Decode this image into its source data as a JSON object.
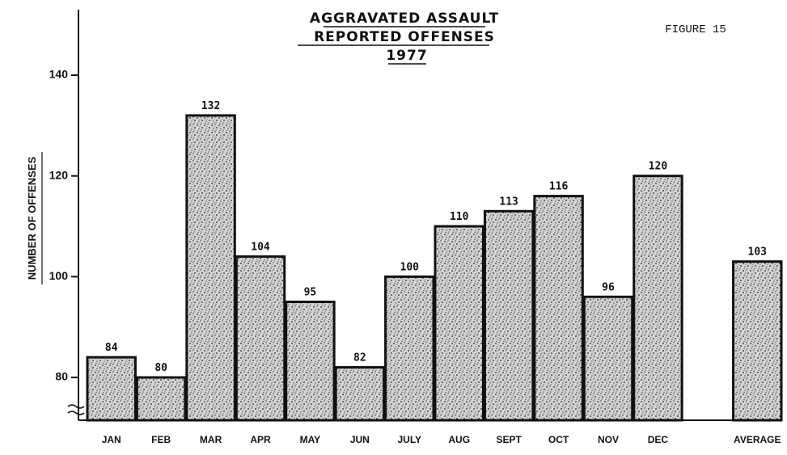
{
  "chart_data": {
    "type": "bar",
    "title": [
      "AGGRAVATED ASSAULT",
      "REPORTED OFFENSES",
      "1977"
    ],
    "figure_label": "FIGURE 15",
    "y_label": "NUMBER OF OFFENSES",
    "categories": [
      "JAN",
      "FEB",
      "MAR",
      "APR",
      "MAY",
      "JUN",
      "JULY",
      "AUG",
      "SEPT",
      "OCT",
      "NOV",
      "DEC",
      null,
      "AVERAGE"
    ],
    "values": [
      84,
      80,
      132,
      104,
      95,
      82,
      100,
      110,
      113,
      116,
      96,
      120,
      null,
      103
    ],
    "color": "#c8c8c8",
    "ylim": [
      71.5,
      153
    ],
    "yticks": [
      80,
      100,
      120,
      140
    ],
    "grid": false
  }
}
